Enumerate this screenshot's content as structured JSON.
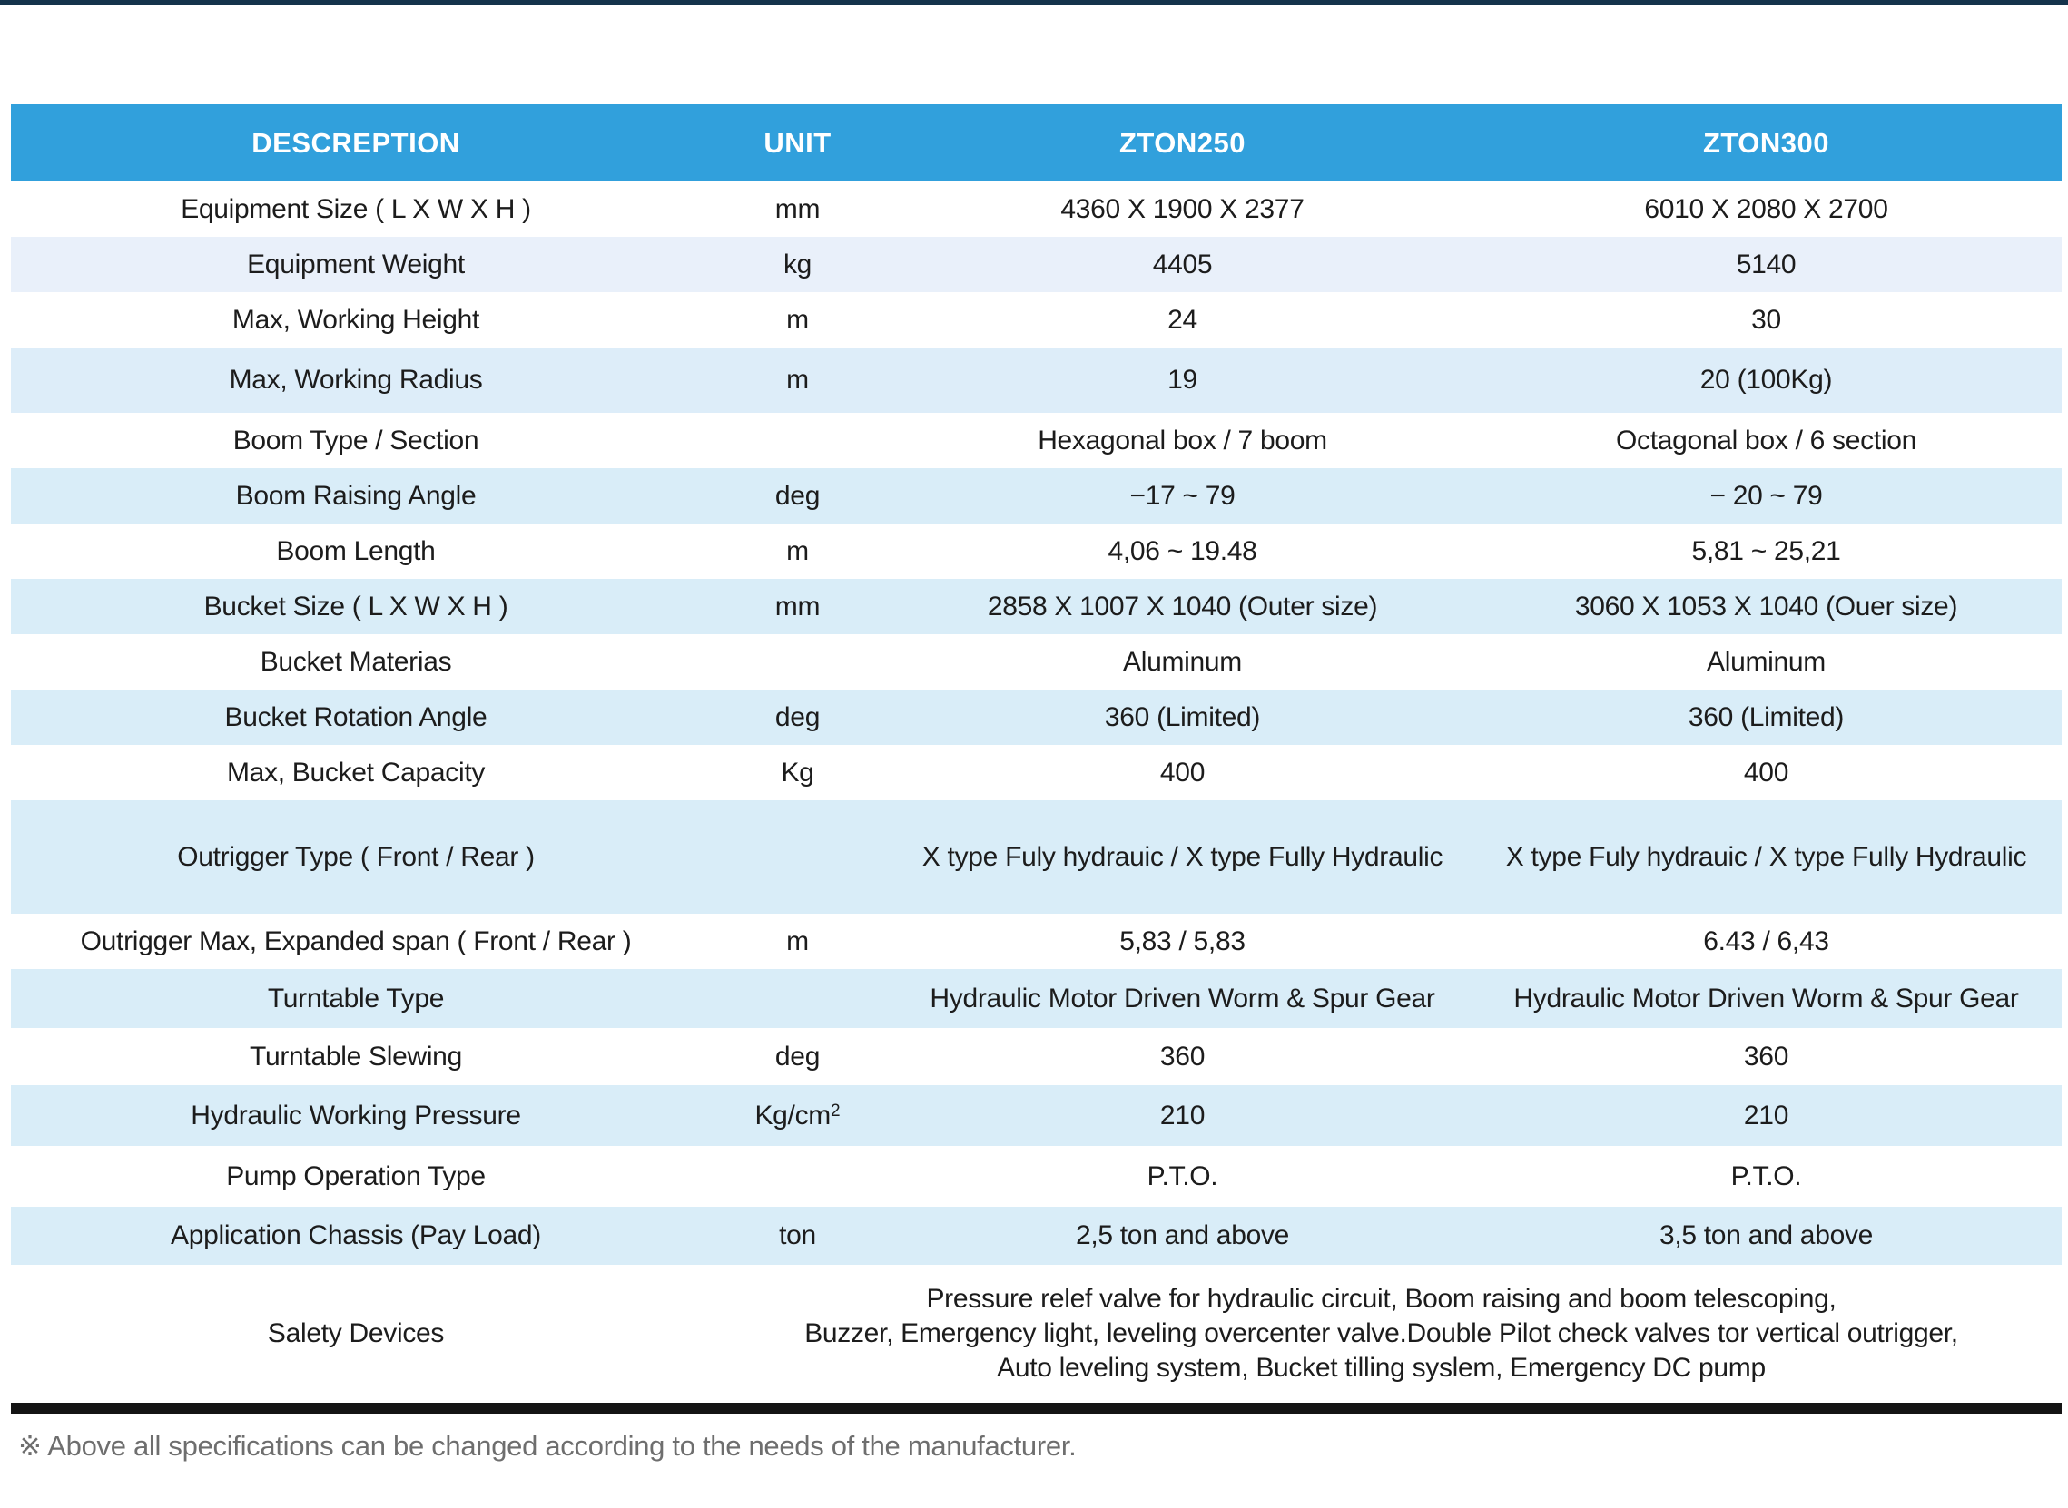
{
  "page": {
    "accent_color": "#31a0dc",
    "topbar_color": "#14334b",
    "row_shade_light": "#e9f0fa",
    "row_shade_cyan": "#d9edf8"
  },
  "table": {
    "columns": [
      "DESCREPTION",
      "UNIT",
      "ZTON250",
      "ZTON300"
    ],
    "rows": [
      {
        "label": "Equipment Size ( L X W X H )",
        "unit": "mm",
        "zton250": "4360 X 1900 X 2377",
        "zton300": "6010 X 2080 X 2700"
      },
      {
        "label": "Equipment Weight",
        "unit": "kg",
        "zton250": "4405",
        "zton300": "5140"
      },
      {
        "label": "Max, Working Height",
        "unit": "m",
        "zton250": "24",
        "zton300": "30"
      },
      {
        "label": "Max, Working Radius",
        "unit": "m",
        "zton250": "19",
        "zton300": "20 (100Kg)"
      },
      {
        "label": "Boom Type / Section",
        "unit": "",
        "zton250": "Hexagonal box / 7 boom",
        "zton300": "Octagonal box / 6 section"
      },
      {
        "label": "Boom Raising Angle",
        "unit": "deg",
        "zton250": "−17 ~ 79",
        "zton300": "− 20 ~ 79"
      },
      {
        "label": "Boom Length",
        "unit": "m",
        "zton250": "4,06 ~ 19.48",
        "zton300": "5,81 ~ 25,21"
      },
      {
        "label": "Bucket Size ( L X W X H )",
        "unit": "mm",
        "zton250": "2858 X 1007 X 1040 (Outer size)",
        "zton300": "3060 X 1053 X 1040 (Ouer size)"
      },
      {
        "label": "Bucket Materias",
        "unit": "",
        "zton250": "Aluminum",
        "zton300": "Aluminum"
      },
      {
        "label": "Bucket Rotation Angle",
        "unit": "deg",
        "zton250": "360 (Limited)",
        "zton300": "360 (Limited)"
      },
      {
        "label": "Max, Bucket Capacity",
        "unit": "Kg",
        "zton250": "400",
        "zton300": "400"
      },
      {
        "label": "Outrigger Type ( Front / Rear )",
        "unit": "",
        "zton250": "X type Fuly hydrauic / X type Fully Hydraulic",
        "zton300": "X type Fuly hydrauic / X type Fully Hydraulic"
      },
      {
        "label": "Outrigger Max, Expanded span ( Front / Rear )",
        "unit": "m",
        "zton250": "5,83 / 5,83",
        "zton300": "6.43 / 6,43"
      },
      {
        "label": "Turntable Type",
        "unit": "",
        "zton250": "Hydraulic Motor Driven Worm & Spur Gear",
        "zton300": "Hydraulic Motor Driven Worm & Spur Gear"
      },
      {
        "label": "Turntable Slewing",
        "unit": "deg",
        "zton250": "360",
        "zton300": "360"
      },
      {
        "label": "Hydraulic Working Pressure",
        "unit": "Kg/cm",
        "unit_sup": "2",
        "zton250": "210",
        "zton300": "210"
      },
      {
        "label": "Pump Operation Type",
        "unit": "",
        "zton250": "P.T.O.",
        "zton300": "P.T.O."
      },
      {
        "label": "Application Chassis (Pay Load)",
        "unit": "ton",
        "zton250": "2,5 ton and above",
        "zton300": "3,5 ton and above"
      },
      {
        "label": "Salety Devices",
        "merged": true,
        "lines": [
          "Pressure relef valve for hydraulic circuit, Boom raising and boom telescoping,",
          "Buzzer, Emergency light, leveling overcenter valve.Double Pilot check valves tor vertical outrigger,",
          "Auto leveling system, Bucket tilling syslem, Emergency DC pump"
        ]
      }
    ]
  },
  "footnote": "※ Above all specifications can be changed according to the needs of the manufacturer."
}
